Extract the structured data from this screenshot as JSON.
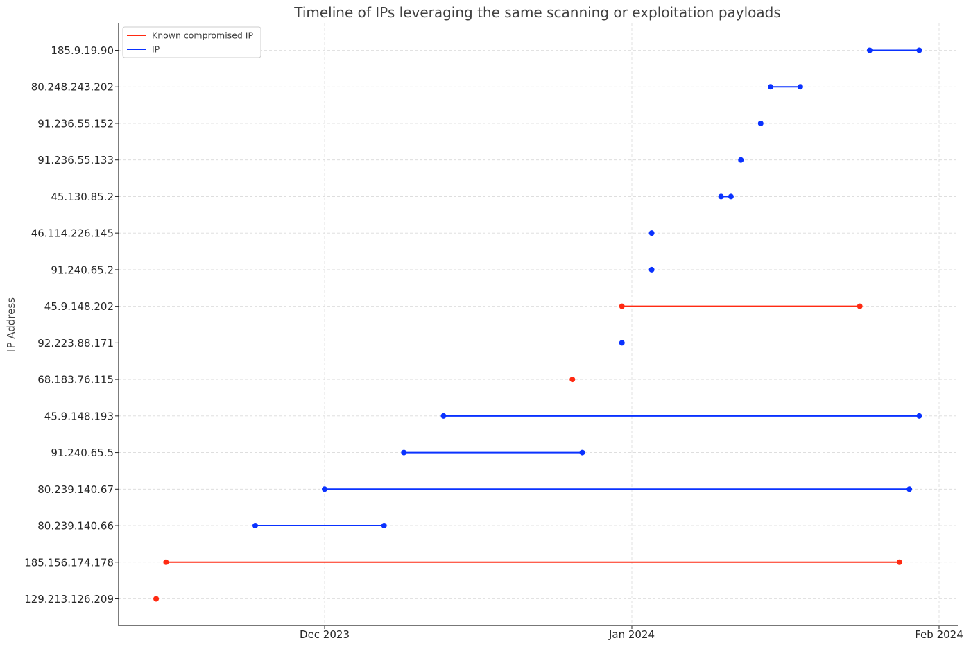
{
  "chart_data": {
    "type": "timeline",
    "title": "Timeline of IPs leveraging the same scanning or exploitation payloads",
    "xlabel": "",
    "ylabel": "IP Address",
    "xlim": [
      "2023-10-30",
      "2024-02-02"
    ],
    "x_ticks": [
      {
        "date": "2023-12-01",
        "label": "Dec 2023"
      },
      {
        "date": "2024-01-01",
        "label": "Jan 2024"
      },
      {
        "date": "2024-02-01",
        "label": "Feb 2024"
      }
    ],
    "grid": true,
    "legend": {
      "placement": "top-left",
      "entries": [
        {
          "label": "Known compromised IP",
          "color": "#ff2a12"
        },
        {
          "label": "IP",
          "color": "#0a32ff"
        }
      ]
    },
    "colors": {
      "known": "#ff2a12",
      "ip": "#0a32ff"
    },
    "categories": [
      "129.213.126.209",
      "185.156.174.178",
      "80.239.140.66",
      "80.239.140.67",
      "91.240.65.5",
      "45.9.148.193",
      "68.183.76.115",
      "92.223.88.171",
      "45.9.148.202",
      "91.240.65.2",
      "46.114.226.145",
      "45.130.85.2",
      "91.236.55.133",
      "91.236.55.152",
      "80.248.243.202",
      "185.9.19.90"
    ],
    "entries": [
      {
        "ip": "129.213.126.209",
        "type": "known",
        "start": "2023-11-14",
        "end": "2023-11-14"
      },
      {
        "ip": "185.156.174.178",
        "type": "known",
        "start": "2023-11-15",
        "end": "2024-01-28"
      },
      {
        "ip": "80.239.140.66",
        "type": "ip",
        "start": "2023-11-24",
        "end": "2023-12-07"
      },
      {
        "ip": "80.239.140.67",
        "type": "ip",
        "start": "2023-12-01",
        "end": "2024-01-29"
      },
      {
        "ip": "91.240.65.5",
        "type": "ip",
        "start": "2023-12-09",
        "end": "2023-12-27"
      },
      {
        "ip": "45.9.148.193",
        "type": "ip",
        "start": "2023-12-13",
        "end": "2024-01-30"
      },
      {
        "ip": "68.183.76.115",
        "type": "known",
        "start": "2023-12-26",
        "end": "2023-12-26"
      },
      {
        "ip": "92.223.88.171",
        "type": "ip",
        "start": "2023-12-31",
        "end": "2023-12-31"
      },
      {
        "ip": "45.9.148.202",
        "type": "known",
        "start": "2023-12-31",
        "end": "2024-01-24"
      },
      {
        "ip": "91.240.65.2",
        "type": "ip",
        "start": "2024-01-03",
        "end": "2024-01-03"
      },
      {
        "ip": "46.114.226.145",
        "type": "ip",
        "start": "2024-01-03",
        "end": "2024-01-03"
      },
      {
        "ip": "45.130.85.2",
        "type": "ip",
        "start": "2024-01-10",
        "end": "2024-01-11"
      },
      {
        "ip": "91.236.55.133",
        "type": "ip",
        "start": "2024-01-12",
        "end": "2024-01-12"
      },
      {
        "ip": "91.236.55.152",
        "type": "ip",
        "start": "2024-01-14",
        "end": "2024-01-14"
      },
      {
        "ip": "80.248.243.202",
        "type": "ip",
        "start": "2024-01-15",
        "end": "2024-01-18"
      },
      {
        "ip": "185.9.19.90",
        "type": "ip",
        "start": "2024-01-25",
        "end": "2024-01-30"
      }
    ]
  }
}
